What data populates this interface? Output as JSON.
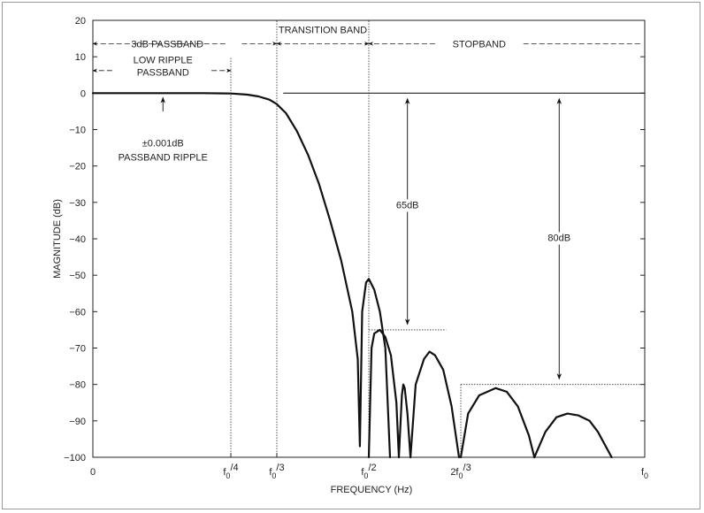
{
  "chart_data": {
    "type": "line",
    "title": "",
    "xlabel": "FREQUENCY (Hz)",
    "ylabel": "MAGNITUDE (dB)",
    "ylim": [
      -100,
      20
    ],
    "xlim": [
      0,
      1
    ],
    "grid": false,
    "y_ticks": [
      "20",
      "10",
      "0",
      "−10",
      "−20",
      "−30",
      "−40",
      "−50",
      "−60",
      "−70",
      "−80",
      "−90",
      "−100"
    ],
    "x_ticks": [
      {
        "value": 0,
        "main": "0",
        "sub": "",
        "sup": ""
      },
      {
        "value": 0.25,
        "main": "f",
        "sub": "0",
        "sup": "/4"
      },
      {
        "value": 0.3333,
        "main": "f",
        "sub": "0",
        "sup": "/3"
      },
      {
        "value": 0.5,
        "main": "f",
        "sub": "0",
        "sup": "/2"
      },
      {
        "value": 0.6667,
        "main": "2f",
        "sub": "0",
        "sup": "/3"
      },
      {
        "value": 1,
        "main": "f",
        "sub": "0",
        "sup": ""
      }
    ],
    "series": [
      {
        "x": [
          0,
          0.1,
          0.2,
          0.25,
          0.28,
          0.3,
          0.32,
          0.3333,
          0.35,
          0.37,
          0.39,
          0.41,
          0.43,
          0.45,
          0.47,
          0.48,
          0.4838,
          0.488,
          0.495,
          0.5,
          0.51,
          0.52,
          0.53,
          0.5385
        ],
        "values": [
          0,
          0,
          0,
          -0.1,
          -0.4,
          -0.9,
          -1.8,
          -3,
          -5.5,
          -10.5,
          -17,
          -25,
          -35,
          -46,
          -60,
          -73,
          -97,
          -60,
          -52,
          -51,
          -54,
          -60,
          -70,
          -100
        ]
      },
      {
        "x": [
          0.5,
          0.505,
          0.51,
          0.52,
          0.53,
          0.54,
          0.55,
          0.5545
        ],
        "values": [
          -100,
          -70,
          -66,
          -65,
          -67,
          -72,
          -85,
          -100
        ]
      },
      {
        "x": [
          0.5545,
          0.56,
          0.5625,
          0.565,
          0.57,
          0.5755
        ],
        "values": [
          -100,
          -83,
          -80,
          -81,
          -88,
          -100
        ]
      },
      {
        "x": [
          0.5755,
          0.585,
          0.6,
          0.61,
          0.62,
          0.635,
          0.65,
          0.6635
        ],
        "values": [
          -100,
          -80,
          -73,
          -71,
          -72,
          -76,
          -86,
          -100
        ]
      },
      {
        "x": [
          0.6667,
          0.68,
          0.7,
          0.73,
          0.75,
          0.77,
          0.79,
          0.8
        ],
        "values": [
          -100,
          -88,
          -83,
          -81,
          -82,
          -86,
          -94,
          -100
        ]
      },
      {
        "x": [
          0.8,
          0.82,
          0.84,
          0.86,
          0.88,
          0.9,
          0.915,
          0.94
        ],
        "values": [
          -100,
          -93,
          -89,
          -88,
          -88.5,
          -90,
          -93,
          -100
        ]
      }
    ],
    "annotations": {
      "passband_3db": "3dB PASSBAND",
      "transition_band": "TRANSITION BAND",
      "stopband": "STOPBAND",
      "low_ripple_1": "LOW RIPPLE",
      "low_ripple_2": "PASSBAND",
      "ripple_1": "±0.001dB",
      "ripple_2": "PASSBAND RIPPLE",
      "atten_65": "65dB",
      "atten_80": "80dB"
    },
    "markers": {
      "ref_line_db": 0,
      "stop_65_db": -65,
      "stop_80_db": -80
    }
  }
}
